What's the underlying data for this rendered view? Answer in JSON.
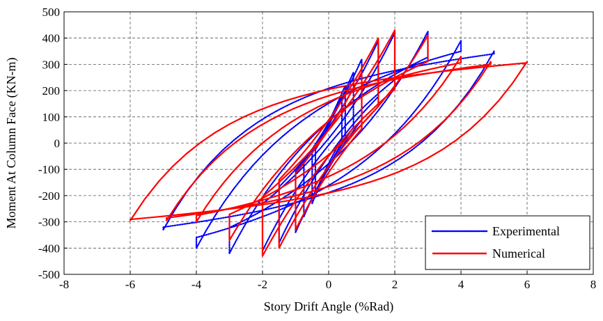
{
  "chart_data": {
    "type": "line",
    "title": "",
    "xlabel": "Story Drift Angle (%Rad)",
    "ylabel": "Moment At Column Face (KN-m)",
    "xlim": [
      -8,
      8
    ],
    "ylim": [
      -500,
      500
    ],
    "x_ticks": [
      -8,
      -6,
      -4,
      -2,
      0,
      2,
      4,
      6,
      8
    ],
    "y_ticks": [
      -500,
      -400,
      -300,
      -200,
      -100,
      0,
      100,
      200,
      300,
      400,
      500
    ],
    "grid": true,
    "legend_position": "bottom-right",
    "series": [
      {
        "name": "Experimental",
        "color": "#0000ff",
        "style": "dotted",
        "loops": [
          {
            "a": 0.4,
            "pos_m": 180,
            "neg_m": -190
          },
          {
            "a": 0.5,
            "pos_m": 220,
            "neg_m": -230
          },
          {
            "a": 0.75,
            "pos_m": 270,
            "neg_m": -280
          },
          {
            "a": 1.0,
            "pos_m": 320,
            "neg_m": -340
          },
          {
            "a": 1.5,
            "pos_m": 390,
            "neg_m": -380
          },
          {
            "a": 2.0,
            "pos_m": 420,
            "neg_m": -410
          },
          {
            "a": 3.0,
            "pos_m": 425,
            "neg_m": -420
          },
          {
            "a": 4.0,
            "pos_m": 390,
            "neg_m": -400
          },
          {
            "a": 5.0,
            "pos_m": 350,
            "neg_m": -330
          }
        ]
      },
      {
        "name": "Numerical",
        "color": "#ff0000",
        "style": "solid",
        "loops": [
          {
            "a": 1.0,
            "pos_m": 270,
            "neg_m": -330
          },
          {
            "a": 1.5,
            "pos_m": 400,
            "neg_m": -400
          },
          {
            "a": 2.0,
            "pos_m": 430,
            "neg_m": -430
          },
          {
            "a": 3.0,
            "pos_m": 410,
            "neg_m": -370
          },
          {
            "a": 4.0,
            "pos_m": 330,
            "neg_m": -300
          },
          {
            "a": 4.9,
            "pos_m": 310,
            "neg_m": -295
          },
          {
            "a": 6.0,
            "pos_m": 310,
            "neg_m": -295
          }
        ]
      }
    ]
  }
}
